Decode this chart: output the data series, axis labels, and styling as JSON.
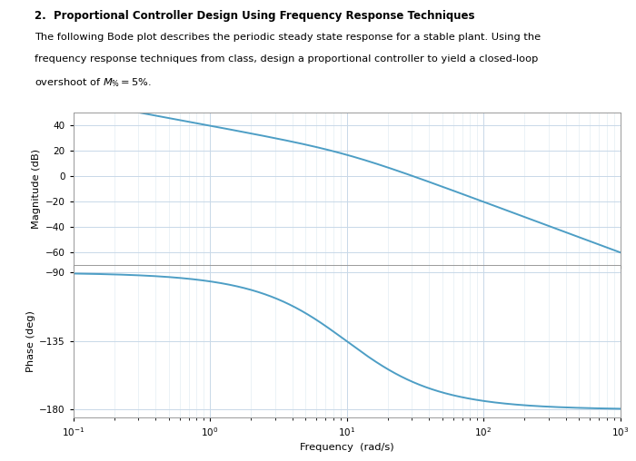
{
  "title_line1": "2.  Proportional Controller Design Using Frequency Response Techniques",
  "desc1": "The following Bode plot describes the periodic steady state response for a stable plant. Using the",
  "desc2": "frequency response techniques from class, design a proportional controller to yield a closed-loop",
  "desc3": "overshoot of $M_{\\%} = 5\\%$.",
  "freq_min": 0.1,
  "freq_max": 1000,
  "mag_ylim": [
    -70,
    50
  ],
  "mag_yticks": [
    40,
    20,
    0,
    -20,
    -40,
    -60
  ],
  "phase_ylim": [
    -185,
    -85
  ],
  "phase_yticks": [
    -90,
    -135,
    -180
  ],
  "xlabel": "Frequency  (rad/s)",
  "ylabel_mag": "Magnitude (dB)",
  "ylabel_phase": "Phase (deg)",
  "line_color": "#4d9ec5",
  "line_width": 1.4,
  "grid_color_major": "#c8d8e8",
  "grid_color_minor": "#dce8f0",
  "background_color": "#ffffff",
  "K": 100.0,
  "omega_p": 10.0,
  "title_fontsize": 8.5,
  "text_fontsize": 8.2,
  "axis_fontsize": 8.2,
  "tick_fontsize": 7.5
}
